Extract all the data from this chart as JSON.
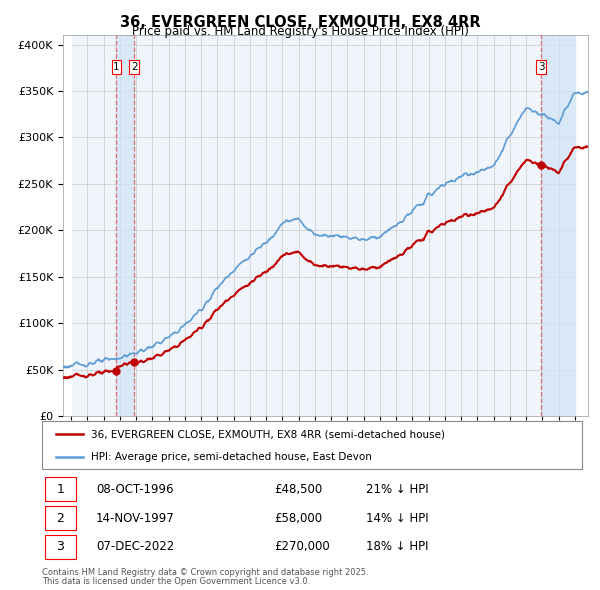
{
  "title": "36, EVERGREEN CLOSE, EXMOUTH, EX8 4RR",
  "subtitle": "Price paid vs. HM Land Registry's House Price Index (HPI)",
  "hpi_label": "HPI: Average price, semi-detached house, East Devon",
  "price_label": "36, EVERGREEN CLOSE, EXMOUTH, EX8 4RR (semi-detached house)",
  "sale_dates": [
    1996.79,
    1997.88,
    2022.92
  ],
  "sale_prices": [
    48500,
    58000,
    270000
  ],
  "sale_labels": [
    "1",
    "2",
    "3"
  ],
  "footer_line1": "Contains HM Land Registry data © Crown copyright and database right 2025.",
  "footer_line2": "This data is licensed under the Open Government Licence v3.0.",
  "table_data": [
    [
      "1",
      "08-OCT-1996",
      "£48,500",
      "21% ↓ HPI"
    ],
    [
      "2",
      "14-NOV-1997",
      "£58,000",
      "14% ↓ HPI"
    ],
    [
      "3",
      "07-DEC-2022",
      "£270,000",
      "18% ↓ HPI"
    ]
  ],
  "hpi_color": "#5b9bd5",
  "hpi_fill_color": "#d0e4f5",
  "price_color": "#c00000",
  "bg_color": "#f0f4fb",
  "hatch_color": "#d8d8d8",
  "grid_color": "#c8c8c8",
  "vline_color": "#e06060",
  "ylim": [
    0,
    410000
  ],
  "xlim_start": 1993.5,
  "xlim_end": 2025.8,
  "hpi_key_years": [
    1993,
    1994,
    1995,
    1996,
    1997,
    1998,
    1999,
    2000,
    2001,
    2002,
    2003,
    2004,
    2005,
    2006,
    2007,
    2008,
    2009,
    2010,
    2011,
    2012,
    2013,
    2014,
    2015,
    2016,
    2017,
    2018,
    2019,
    2020,
    2021,
    2022,
    2023,
    2024,
    2025
  ],
  "hpi_key_vals": [
    52000,
    54000,
    56500,
    59000,
    63000,
    68000,
    75000,
    84000,
    98000,
    115000,
    138000,
    158000,
    172000,
    187000,
    208000,
    212000,
    195000,
    195000,
    193000,
    190000,
    194000,
    205000,
    220000,
    237000,
    250000,
    258000,
    263000,
    268000,
    302000,
    332000,
    325000,
    316000,
    348000
  ],
  "noise_seed": 123,
  "noise_scale": 2500
}
